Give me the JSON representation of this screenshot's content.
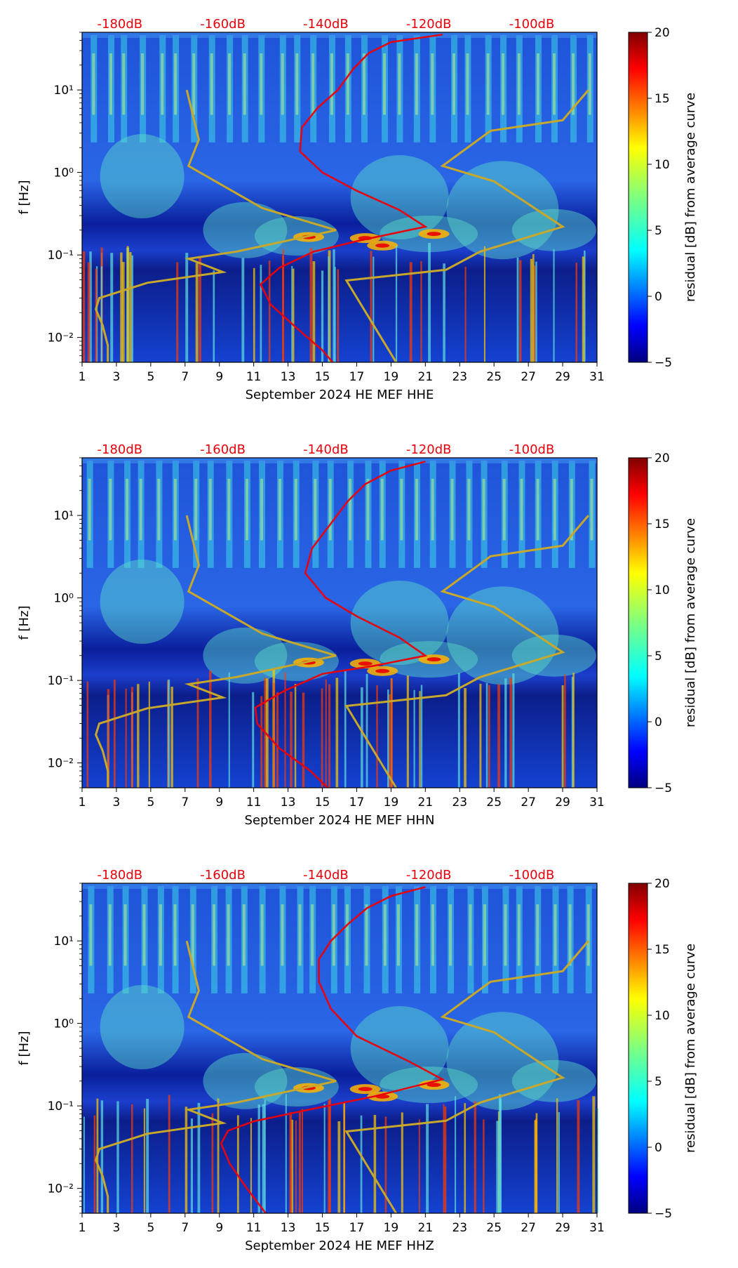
{
  "chart_data": [
    {
      "type": "heatmap",
      "xlabel": "September 2024 HE MEF  HHE",
      "ylabel": "f [Hz]",
      "x_ticks": [
        "1",
        "3",
        "5",
        "7",
        "9",
        "11",
        "13",
        "15",
        "17",
        "19",
        "21",
        "23",
        "25",
        "27",
        "29",
        "31"
      ],
      "y_ticks": [
        "10⁻²",
        "10⁻¹",
        "10⁰",
        "10¹"
      ],
      "top_labels": [
        "-180dB",
        "-160dB",
        "-140dB",
        "-120dB",
        "-100dB"
      ],
      "colorbar_label": "residual [dB] from average curve",
      "colorbar_ticks": [
        "−5",
        "0",
        "5",
        "10",
        "15",
        "20"
      ],
      "xlim": [
        1,
        31
      ],
      "ylim": [
        0.005,
        50
      ],
      "log_y": true,
      "clim": [
        -5,
        20
      ],
      "colormap": "jet",
      "noise_model_lines": {
        "color": "#c8a82a",
        "low": [
          [
            2.5,
            0.005
          ],
          [
            2.5,
            0.008
          ],
          [
            2.2,
            0.014
          ],
          [
            1.8,
            0.022
          ],
          [
            2.0,
            0.03
          ],
          [
            4.8,
            0.046
          ],
          [
            9.2,
            0.062
          ],
          [
            7.2,
            0.09
          ],
          [
            10.0,
            0.11
          ],
          [
            15.8,
            0.2
          ],
          [
            11.5,
            0.37
          ],
          [
            7.2,
            1.2
          ],
          [
            7.8,
            2.5
          ],
          [
            7.1,
            10
          ]
        ],
        "high": [
          [
            19.3,
            0.005
          ],
          [
            16.4,
            0.049
          ],
          [
            22.2,
            0.066
          ],
          [
            24.2,
            0.11
          ],
          [
            29.0,
            0.22
          ],
          [
            25.0,
            0.78
          ],
          [
            22.0,
            1.2
          ],
          [
            24.8,
            3.2
          ],
          [
            29.0,
            4.3
          ],
          [
            30.5,
            10
          ]
        ]
      },
      "median_curve": {
        "color": "#e8000b",
        "points": [
          [
            15.6,
            0.005
          ],
          [
            15.0,
            0.007
          ],
          [
            13.5,
            0.013
          ],
          [
            12.0,
            0.025
          ],
          [
            11.4,
            0.044
          ],
          [
            12.5,
            0.07
          ],
          [
            14.5,
            0.11
          ],
          [
            17.2,
            0.15
          ],
          [
            21.0,
            0.22
          ],
          [
            19.5,
            0.35
          ],
          [
            17.0,
            0.6
          ],
          [
            15.0,
            1.0
          ],
          [
            13.7,
            1.8
          ],
          [
            13.8,
            3.5
          ],
          [
            14.7,
            6
          ],
          [
            15.9,
            10
          ],
          [
            16.8,
            18
          ],
          [
            17.7,
            28
          ],
          [
            19.0,
            38
          ],
          [
            22.0,
            47
          ]
        ]
      }
    },
    {
      "type": "heatmap",
      "xlabel": "September 2024 HE MEF  HHN",
      "ylabel": "f [Hz]",
      "x_ticks": [
        "1",
        "3",
        "5",
        "7",
        "9",
        "11",
        "13",
        "15",
        "17",
        "19",
        "21",
        "23",
        "25",
        "27",
        "29",
        "31"
      ],
      "y_ticks": [
        "10⁻²",
        "10⁻¹",
        "10⁰",
        "10¹"
      ],
      "top_labels": [
        "-180dB",
        "-160dB",
        "-140dB",
        "-120dB",
        "-100dB"
      ],
      "colorbar_label": "residual [dB] from average curve",
      "colorbar_ticks": [
        "−5",
        "0",
        "5",
        "10",
        "15",
        "20"
      ],
      "xlim": [
        1,
        31
      ],
      "ylim": [
        0.005,
        50
      ],
      "log_y": true,
      "clim": [
        -5,
        20
      ],
      "colormap": "jet",
      "noise_model_lines": {
        "color": "#c8a82a",
        "low": [
          [
            2.5,
            0.005
          ],
          [
            2.5,
            0.008
          ],
          [
            2.2,
            0.014
          ],
          [
            1.8,
            0.022
          ],
          [
            2.0,
            0.03
          ],
          [
            4.8,
            0.046
          ],
          [
            9.2,
            0.062
          ],
          [
            7.2,
            0.09
          ],
          [
            10.0,
            0.11
          ],
          [
            15.8,
            0.2
          ],
          [
            11.5,
            0.37
          ],
          [
            7.2,
            1.2
          ],
          [
            7.8,
            2.5
          ],
          [
            7.1,
            10
          ]
        ],
        "high": [
          [
            19.3,
            0.005
          ],
          [
            16.4,
            0.049
          ],
          [
            22.2,
            0.066
          ],
          [
            24.2,
            0.11
          ],
          [
            29.0,
            0.22
          ],
          [
            25.0,
            0.78
          ],
          [
            22.0,
            1.2
          ],
          [
            24.8,
            3.2
          ],
          [
            29.0,
            4.3
          ],
          [
            30.5,
            10
          ]
        ]
      },
      "median_curve": {
        "color": "#e8000b",
        "points": [
          [
            15.3,
            0.005
          ],
          [
            14.3,
            0.008
          ],
          [
            12.5,
            0.015
          ],
          [
            11.2,
            0.03
          ],
          [
            11.1,
            0.047
          ],
          [
            12.8,
            0.075
          ],
          [
            15.0,
            0.12
          ],
          [
            18.0,
            0.15
          ],
          [
            21.0,
            0.2
          ],
          [
            19.5,
            0.33
          ],
          [
            17.0,
            0.6
          ],
          [
            15.2,
            1.0
          ],
          [
            14.0,
            2.0
          ],
          [
            14.4,
            4
          ],
          [
            15.5,
            8
          ],
          [
            16.5,
            15
          ],
          [
            17.5,
            24
          ],
          [
            19.0,
            35
          ],
          [
            21.0,
            45
          ]
        ]
      }
    },
    {
      "type": "heatmap",
      "xlabel": "September 2024 HE MEF  HHZ",
      "ylabel": "f [Hz]",
      "x_ticks": [
        "1",
        "3",
        "5",
        "7",
        "9",
        "11",
        "13",
        "15",
        "17",
        "19",
        "21",
        "23",
        "25",
        "27",
        "29",
        "31"
      ],
      "y_ticks": [
        "10⁻²",
        "10⁻¹",
        "10⁰",
        "10¹"
      ],
      "top_labels": [
        "-180dB",
        "-160dB",
        "-140dB",
        "-120dB",
        "-100dB"
      ],
      "colorbar_label": "residual [dB] from average curve",
      "colorbar_ticks": [
        "−5",
        "0",
        "5",
        "10",
        "15",
        "20"
      ],
      "xlim": [
        1,
        31
      ],
      "ylim": [
        0.005,
        50
      ],
      "log_y": true,
      "clim": [
        -5,
        20
      ],
      "colormap": "jet",
      "noise_model_lines": {
        "color": "#c8a82a",
        "low": [
          [
            2.5,
            0.005
          ],
          [
            2.5,
            0.008
          ],
          [
            2.2,
            0.014
          ],
          [
            1.8,
            0.022
          ],
          [
            2.0,
            0.03
          ],
          [
            4.8,
            0.046
          ],
          [
            9.2,
            0.062
          ],
          [
            7.2,
            0.09
          ],
          [
            10.0,
            0.11
          ],
          [
            15.8,
            0.2
          ],
          [
            11.5,
            0.37
          ],
          [
            7.2,
            1.2
          ],
          [
            7.8,
            2.5
          ],
          [
            7.1,
            10
          ]
        ],
        "high": [
          [
            19.3,
            0.005
          ],
          [
            16.4,
            0.049
          ],
          [
            22.2,
            0.066
          ],
          [
            24.2,
            0.11
          ],
          [
            29.0,
            0.22
          ],
          [
            25.0,
            0.78
          ],
          [
            22.0,
            1.2
          ],
          [
            24.8,
            3.2
          ],
          [
            29.0,
            4.3
          ],
          [
            30.5,
            10
          ]
        ]
      },
      "median_curve": {
        "color": "#e8000b",
        "points": [
          [
            11.7,
            0.005
          ],
          [
            10.6,
            0.01
          ],
          [
            9.6,
            0.02
          ],
          [
            9.1,
            0.035
          ],
          [
            9.5,
            0.05
          ],
          [
            11.0,
            0.065
          ],
          [
            14.2,
            0.09
          ],
          [
            18.0,
            0.13
          ],
          [
            22.0,
            0.21
          ],
          [
            20.0,
            0.35
          ],
          [
            17.0,
            0.7
          ],
          [
            15.5,
            1.5
          ],
          [
            14.8,
            3.2
          ],
          [
            14.8,
            6
          ],
          [
            15.5,
            10
          ],
          [
            16.5,
            16
          ],
          [
            17.6,
            25
          ],
          [
            19.0,
            35
          ],
          [
            21.0,
            45
          ]
        ]
      }
    }
  ]
}
